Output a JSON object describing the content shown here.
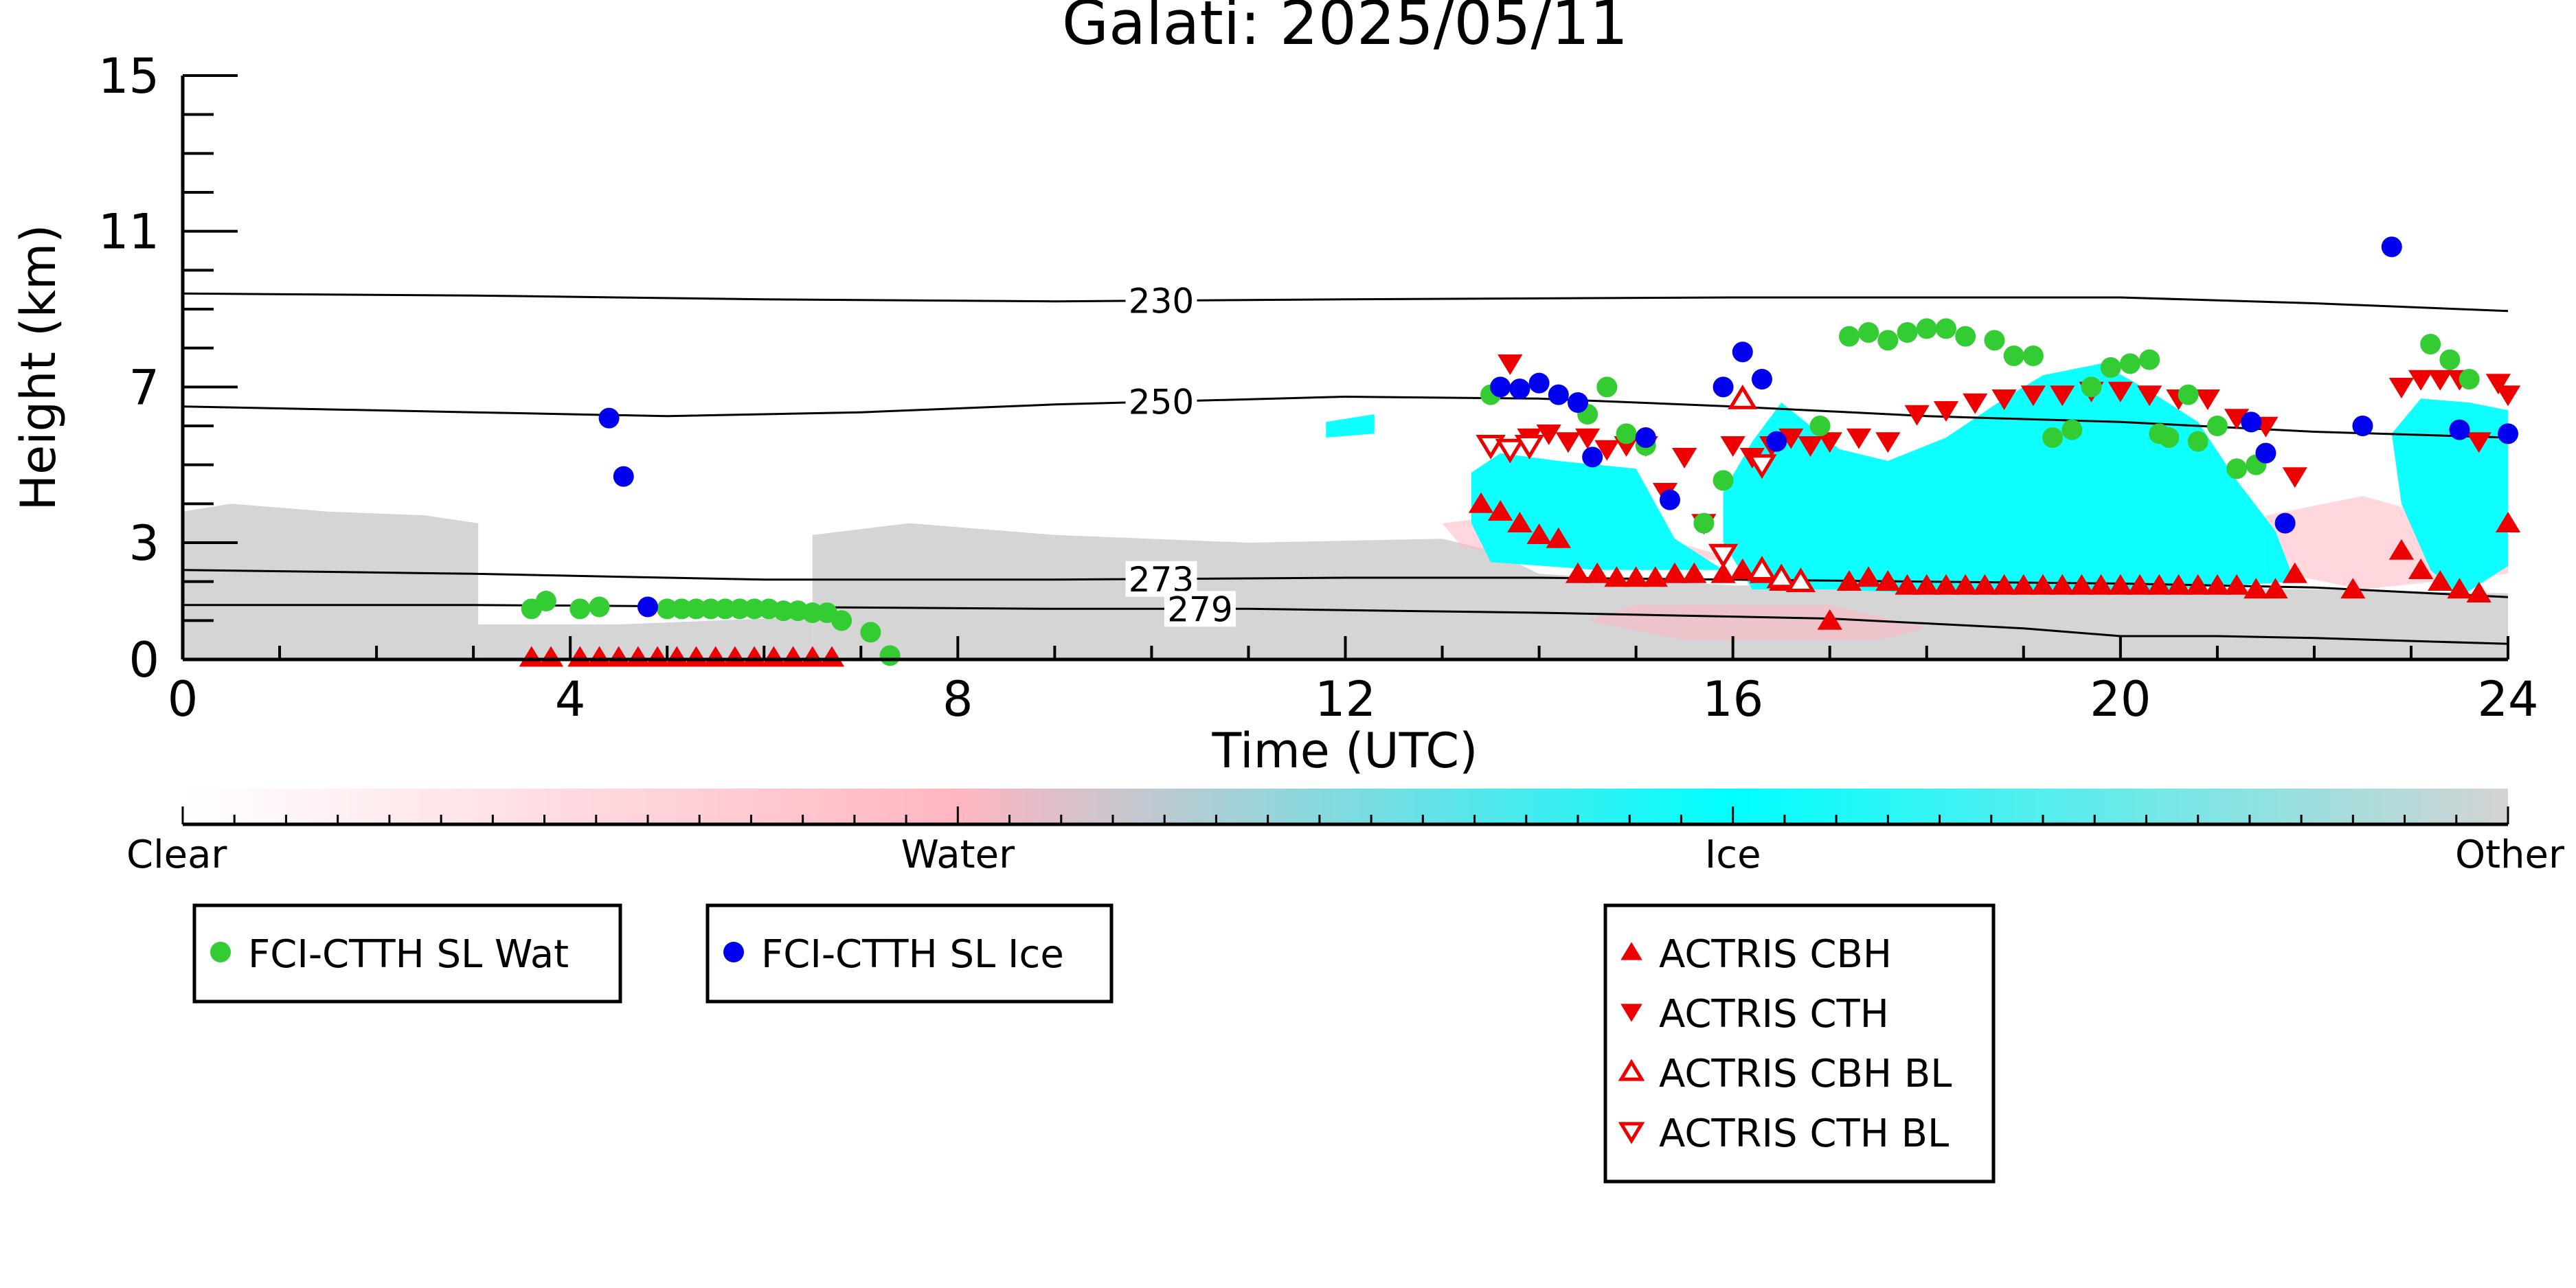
{
  "chart_data": {
    "type": "scatter",
    "title": "Galati: 2025/05/11",
    "xlabel": "Time (UTC)",
    "ylabel": "Height (km)",
    "xlim": [
      0,
      24
    ],
    "ylim": [
      0,
      15
    ],
    "x_ticks": [
      0,
      4,
      8,
      12,
      16,
      20,
      24
    ],
    "y_ticks": [
      0,
      3,
      7,
      11,
      15
    ],
    "grid": false,
    "background": {
      "description_colors": {
        "clear": "#ffffff",
        "water": "#ffb6c1",
        "ice": "#00ffff",
        "other": "#d3d3d3"
      },
      "regions": [
        {
          "cls": "other",
          "polygon": [
            [
              0,
              0
            ],
            [
              0,
              3.8
            ],
            [
              0.5,
              4.0
            ],
            [
              1.5,
              3.8
            ],
            [
              2.5,
              3.7
            ],
            [
              3.05,
              3.5
            ],
            [
              3.05,
              0
            ]
          ]
        },
        {
          "cls": "other",
          "polygon": [
            [
              3.05,
              0
            ],
            [
              3.05,
              0.9
            ],
            [
              4.5,
              0.9
            ],
            [
              6.5,
              1.1
            ],
            [
              6.5,
              0
            ]
          ]
        },
        {
          "cls": "other",
          "polygon": [
            [
              6.5,
              0
            ],
            [
              6.5,
              3.2
            ],
            [
              7.5,
              3.5
            ],
            [
              9,
              3.2
            ],
            [
              11,
              3.0
            ],
            [
              13,
              3.1
            ],
            [
              13.5,
              2.8
            ],
            [
              14,
              2.2
            ],
            [
              16,
              1.9
            ],
            [
              18,
              1.9
            ],
            [
              20,
              1.85
            ],
            [
              22,
              1.8
            ],
            [
              24,
              1.7
            ],
            [
              24,
              0
            ]
          ]
        },
        {
          "cls": "water",
          "polygon": [
            [
              13.0,
              3.5
            ],
            [
              14.0,
              3.8
            ],
            [
              15.0,
              3.3
            ],
            [
              16.0,
              2.6
            ],
            [
              14.5,
              2.3
            ],
            [
              13.2,
              2.9
            ]
          ]
        },
        {
          "cls": "water",
          "polygon": [
            [
              21.5,
              3.7
            ],
            [
              22.5,
              4.2
            ],
            [
              23.5,
              3.5
            ],
            [
              24,
              3.2
            ],
            [
              24,
              2.2
            ],
            [
              22.5,
              1.8
            ],
            [
              21.5,
              2.3
            ]
          ]
        },
        {
          "cls": "water",
          "polygon": [
            [
              14.5,
              1.0
            ],
            [
              15.0,
              1.4
            ],
            [
              17.0,
              1.4
            ],
            [
              18.0,
              0.8
            ],
            [
              17.5,
              0.5
            ],
            [
              15.5,
              0.5
            ]
          ]
        },
        {
          "cls": "ice",
          "polygon": [
            [
              13.3,
              4.8
            ],
            [
              13.6,
              5.3
            ],
            [
              14.2,
              5.1
            ],
            [
              15.0,
              4.9
            ],
            [
              15.2,
              4.0
            ],
            [
              15.4,
              3.1
            ],
            [
              15.9,
              2.3
            ],
            [
              14.6,
              2.3
            ],
            [
              13.5,
              2.5
            ],
            [
              13.3,
              3.5
            ]
          ]
        },
        {
          "cls": "ice",
          "polygon": [
            [
              15.9,
              4.3
            ],
            [
              16.2,
              5.6
            ],
            [
              16.5,
              6.6
            ],
            [
              17.1,
              5.4
            ],
            [
              17.6,
              5.1
            ],
            [
              18.2,
              5.7
            ],
            [
              18.8,
              6.7
            ],
            [
              19.2,
              7.3
            ],
            [
              19.8,
              7.6
            ],
            [
              20.3,
              6.9
            ],
            [
              20.8,
              6.1
            ],
            [
              21.2,
              4.6
            ],
            [
              21.6,
              3.3
            ],
            [
              21.8,
              2.0
            ],
            [
              20.5,
              1.8
            ],
            [
              18.0,
              1.7
            ],
            [
              17.0,
              1.8
            ],
            [
              16.2,
              1.8
            ],
            [
              15.9,
              3.0
            ]
          ]
        },
        {
          "cls": "ice",
          "polygon": [
            [
              22.8,
              5.8
            ],
            [
              23.1,
              6.7
            ],
            [
              23.6,
              6.6
            ],
            [
              24,
              6.4
            ],
            [
              24,
              2.4
            ],
            [
              23.5,
              1.6
            ],
            [
              23.2,
              2.3
            ],
            [
              22.9,
              4.0
            ]
          ]
        },
        {
          "cls": "ice",
          "polygon": [
            [
              11.8,
              6.1
            ],
            [
              12.3,
              6.3
            ],
            [
              12.3,
              5.8
            ],
            [
              11.8,
              5.7
            ]
          ]
        }
      ]
    },
    "contours": [
      {
        "label": "230",
        "points": [
          [
            0,
            9.4
          ],
          [
            3,
            9.35
          ],
          [
            6,
            9.25
          ],
          [
            9,
            9.2
          ],
          [
            12,
            9.25
          ],
          [
            16,
            9.3
          ],
          [
            20,
            9.3
          ],
          [
            22,
            9.15
          ],
          [
            24,
            8.95
          ]
        ]
      },
      {
        "label": "250",
        "points": [
          [
            0,
            6.5
          ],
          [
            3,
            6.35
          ],
          [
            5,
            6.25
          ],
          [
            7,
            6.35
          ],
          [
            9,
            6.55
          ],
          [
            12,
            6.75
          ],
          [
            14,
            6.7
          ],
          [
            16,
            6.5
          ],
          [
            18,
            6.25
          ],
          [
            20,
            6.1
          ],
          [
            22,
            5.85
          ],
          [
            24,
            5.7
          ]
        ]
      },
      {
        "label": "273",
        "points": [
          [
            0,
            2.3
          ],
          [
            3,
            2.2
          ],
          [
            6,
            2.05
          ],
          [
            9,
            2.05
          ],
          [
            12,
            2.1
          ],
          [
            14,
            2.1
          ],
          [
            16,
            2.05
          ],
          [
            18,
            2.0
          ],
          [
            20,
            1.95
          ],
          [
            22,
            1.85
          ],
          [
            24,
            1.6
          ]
        ]
      },
      {
        "label": "279",
        "points": [
          [
            0,
            1.4
          ],
          [
            3,
            1.4
          ],
          [
            6,
            1.35
          ],
          [
            9,
            1.3
          ],
          [
            11,
            1.3
          ],
          [
            14,
            1.2
          ],
          [
            17,
            1.05
          ],
          [
            19,
            0.8
          ],
          [
            20,
            0.6
          ],
          [
            21,
            0.6
          ],
          [
            22,
            0.55
          ],
          [
            24,
            0.4
          ]
        ]
      }
    ],
    "colorbar": {
      "labels": [
        "Clear",
        "Water",
        "Ice",
        "Other"
      ],
      "stops": [
        "#ffffff",
        "#ffb6c1",
        "#00ffff",
        "#d3d3d3"
      ]
    },
    "series": [
      {
        "name": "FCI-CTTH SL Wat",
        "color": "#33cc33",
        "marker": "circle",
        "x": [
          3.6,
          3.75,
          4.1,
          4.3,
          5.0,
          5.15,
          5.3,
          5.45,
          5.6,
          5.75,
          5.9,
          6.05,
          6.2,
          6.35,
          6.5,
          6.65,
          6.8,
          7.1,
          7.3,
          13.5,
          14.5,
          14.7,
          14.9,
          15.1,
          15.7,
          15.9,
          16.9,
          17.2,
          17.4,
          17.6,
          17.8,
          18.0,
          18.2,
          18.4,
          18.7,
          18.9,
          19.1,
          19.3,
          19.5,
          19.7,
          19.9,
          20.1,
          20.3,
          20.4,
          20.5,
          20.7,
          20.8,
          21.0,
          21.2,
          21.4,
          23.2,
          23.4,
          23.6
        ],
        "y": [
          1.3,
          1.5,
          1.3,
          1.35,
          1.3,
          1.3,
          1.3,
          1.3,
          1.3,
          1.3,
          1.3,
          1.3,
          1.25,
          1.25,
          1.2,
          1.2,
          1.0,
          0.7,
          0.1,
          6.8,
          6.3,
          7.0,
          5.8,
          5.5,
          3.5,
          4.6,
          6.0,
          8.3,
          8.4,
          8.2,
          8.4,
          8.5,
          8.5,
          8.3,
          8.2,
          7.8,
          7.8,
          5.7,
          5.9,
          7.0,
          7.5,
          7.6,
          7.7,
          5.8,
          5.7,
          6.8,
          5.6,
          6.0,
          4.9,
          5.0,
          8.1,
          7.7,
          7.2
        ]
      },
      {
        "name": "FCI-CTTH SL Ice",
        "color": "#0000ee",
        "marker": "circle",
        "x": [
          4.4,
          4.55,
          4.8,
          13.6,
          13.8,
          14.0,
          14.2,
          14.4,
          14.55,
          15.1,
          15.35,
          15.9,
          16.1,
          16.3,
          16.45,
          21.35,
          21.5,
          21.7,
          22.5,
          22.8,
          23.5,
          24.0
        ],
        "y": [
          6.2,
          4.7,
          1.35,
          7.0,
          6.95,
          7.1,
          6.8,
          6.6,
          5.2,
          5.7,
          4.1,
          7.0,
          7.9,
          7.2,
          5.6,
          6.1,
          5.3,
          3.5,
          6.0,
          10.6,
          5.9,
          5.8
        ]
      },
      {
        "name": "ACTRIS CBH",
        "color": "#ee0000",
        "marker": "triangle-up",
        "x": [
          3.6,
          3.8,
          4.1,
          4.3,
          4.5,
          4.7,
          4.9,
          5.1,
          5.3,
          5.5,
          5.7,
          5.9,
          6.1,
          6.3,
          6.5,
          6.7,
          13.4,
          13.6,
          13.8,
          14.0,
          14.2,
          14.4,
          14.6,
          14.8,
          15.0,
          15.2,
          15.4,
          15.6,
          15.9,
          16.1,
          16.3,
          16.5,
          16.7,
          17.0,
          17.2,
          17.4,
          17.6,
          17.8,
          18.0,
          18.2,
          18.4,
          18.6,
          18.8,
          19.0,
          19.2,
          19.4,
          19.6,
          19.8,
          20.0,
          20.2,
          20.4,
          20.6,
          20.8,
          21.0,
          21.2,
          21.4,
          21.6,
          21.8,
          22.4,
          22.9,
          23.1,
          23.3,
          23.5,
          23.7,
          24.0
        ],
        "y": [
          0.05,
          0.05,
          0.05,
          0.05,
          0.05,
          0.05,
          0.05,
          0.05,
          0.05,
          0.05,
          0.05,
          0.05,
          0.05,
          0.05,
          0.05,
          0.05,
          4.0,
          3.8,
          3.5,
          3.2,
          3.1,
          2.2,
          2.2,
          2.1,
          2.1,
          2.1,
          2.2,
          2.2,
          2.2,
          2.3,
          2.2,
          2.0,
          2.0,
          1.0,
          2.0,
          2.1,
          2.0,
          1.9,
          1.9,
          1.9,
          1.9,
          1.9,
          1.9,
          1.9,
          1.9,
          1.9,
          1.9,
          1.9,
          1.9,
          1.9,
          1.9,
          1.9,
          1.9,
          1.9,
          1.9,
          1.8,
          1.8,
          2.2,
          1.8,
          2.8,
          2.3,
          2.0,
          1.8,
          1.7,
          3.5
        ]
      },
      {
        "name": "ACTRIS CTH",
        "color": "#ee0000",
        "marker": "triangle-down",
        "x": [
          13.5,
          13.7,
          13.9,
          14.1,
          14.3,
          14.5,
          14.7,
          14.9,
          15.1,
          15.3,
          15.5,
          15.7,
          16.0,
          16.2,
          16.4,
          16.6,
          16.8,
          17.0,
          17.3,
          17.6,
          17.9,
          18.2,
          18.5,
          18.8,
          19.1,
          19.4,
          19.7,
          20.0,
          20.3,
          20.6,
          20.9,
          21.2,
          21.5,
          21.8,
          22.9,
          23.1,
          23.3,
          23.5,
          23.7,
          23.9,
          24.0
        ],
        "y": [
          5.5,
          7.6,
          5.7,
          5.8,
          5.6,
          5.7,
          5.4,
          5.5,
          5.5,
          4.3,
          5.2,
          3.5,
          5.5,
          5.2,
          5.5,
          5.7,
          5.5,
          5.6,
          5.7,
          5.6,
          6.3,
          6.4,
          6.6,
          6.7,
          6.8,
          6.8,
          6.9,
          6.9,
          6.8,
          6.7,
          6.7,
          6.2,
          6.0,
          4.7,
          7.0,
          7.2,
          7.2,
          7.2,
          5.6,
          7.1,
          6.8
        ]
      },
      {
        "name": "ACTRIS CBH BL",
        "color": "#ee0000",
        "marker": "triangle-up-open",
        "x": [
          16.1,
          16.3,
          16.5,
          16.7
        ],
        "y": [
          6.7,
          2.3,
          2.1,
          2.0
        ]
      },
      {
        "name": "ACTRIS CTH BL",
        "color": "#ee0000",
        "marker": "triangle-down-open",
        "x": [
          13.5,
          13.7,
          13.9,
          15.9,
          16.3
        ],
        "y": [
          5.5,
          5.4,
          5.5,
          2.7,
          5.0
        ]
      }
    ],
    "legends": [
      {
        "entries": [
          "FCI-CTTH SL Wat"
        ]
      },
      {
        "entries": [
          "FCI-CTTH SL Ice"
        ]
      },
      {
        "entries": [
          "ACTRIS CBH",
          "ACTRIS CTH",
          "ACTRIS CBH BL",
          "ACTRIS CTH BL"
        ]
      }
    ]
  }
}
